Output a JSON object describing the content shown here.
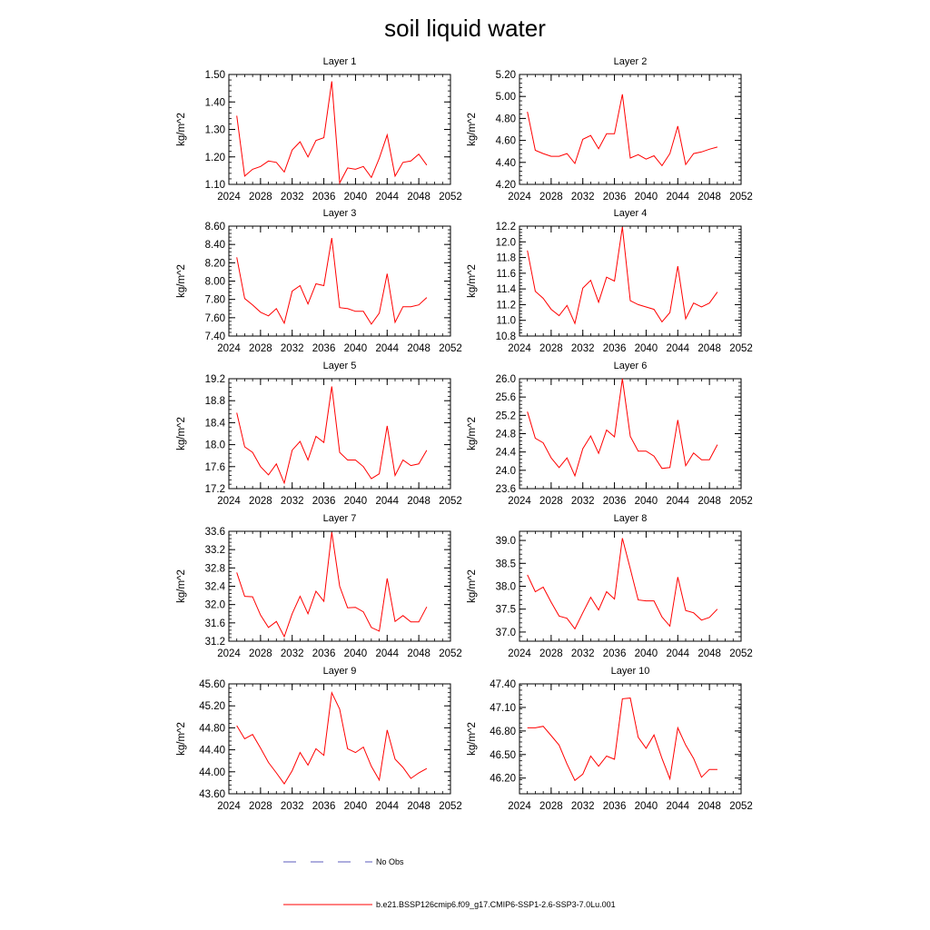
{
  "title": "soil liquid water",
  "colors": {
    "series": "#ff0000",
    "obs": "#5b5bbd",
    "axis": "#000000"
  },
  "legend": {
    "obs_label": "No Obs",
    "series_label": "b.e21.BSSP126cmip6.f09_g17.CMIP6-SSP1-2.6-SSP3-7.0Lu.001"
  },
  "chart_data": [
    {
      "type": "line",
      "title": "Layer 1",
      "ylabel": "kg/m^2",
      "xlim": [
        2024,
        2052
      ],
      "ylim": [
        1.1,
        1.5
      ],
      "xticks": [
        2024,
        2028,
        2032,
        2036,
        2040,
        2044,
        2048,
        2052
      ],
      "xtick_labels": [
        "2024",
        "2028",
        "2032",
        "2036",
        "2040",
        "2044",
        "2048",
        "2052"
      ],
      "yticks": [
        1.1,
        1.2,
        1.3,
        1.4,
        1.5
      ],
      "ytick_labels": [
        "1.10",
        "1.20",
        "1.30",
        "1.40",
        "1.50"
      ],
      "series": [
        {
          "x": [
            2025,
            2026,
            2027,
            2028,
            2029,
            2030,
            2031,
            2032,
            2033,
            2034,
            2035,
            2036,
            2037,
            2038,
            2039,
            2040,
            2041,
            2042,
            2043,
            2044,
            2045,
            2046,
            2047,
            2048,
            2049
          ],
          "y": [
            1.35,
            1.13,
            1.155,
            1.165,
            1.185,
            1.18,
            1.145,
            1.225,
            1.255,
            1.2,
            1.26,
            1.27,
            1.475,
            1.105,
            1.16,
            1.155,
            1.165,
            1.125,
            1.195,
            1.28,
            1.13,
            1.18,
            1.185,
            1.21,
            1.17
          ]
        }
      ]
    },
    {
      "type": "line",
      "title": "Layer 2",
      "ylabel": "kg/m^2",
      "xlim": [
        2024,
        2052
      ],
      "ylim": [
        4.2,
        5.2
      ],
      "xticks": [
        2024,
        2028,
        2032,
        2036,
        2040,
        2044,
        2048,
        2052
      ],
      "xtick_labels": [
        "2024",
        "2028",
        "2032",
        "2036",
        "2040",
        "2044",
        "2048",
        "2052"
      ],
      "yticks": [
        4.2,
        4.4,
        4.6,
        4.8,
        5.0,
        5.2
      ],
      "ytick_labels": [
        "4.20",
        "4.40",
        "4.60",
        "4.80",
        "5.00",
        "5.20"
      ],
      "series": [
        {
          "x": [
            2025,
            2026,
            2027,
            2028,
            2029,
            2030,
            2031,
            2032,
            2033,
            2034,
            2035,
            2036,
            2037,
            2038,
            2039,
            2040,
            2041,
            2042,
            2043,
            2044,
            2045,
            2046,
            2047,
            2048,
            2049
          ],
          "y": [
            4.86,
            4.51,
            4.48,
            4.455,
            4.455,
            4.48,
            4.39,
            4.61,
            4.645,
            4.525,
            4.66,
            4.66,
            5.02,
            4.44,
            4.47,
            4.43,
            4.46,
            4.37,
            4.48,
            4.73,
            4.38,
            4.48,
            4.495,
            4.52,
            4.54
          ]
        }
      ]
    },
    {
      "type": "line",
      "title": "Layer 3",
      "ylabel": "kg/m^2",
      "xlim": [
        2024,
        2052
      ],
      "ylim": [
        7.4,
        8.6
      ],
      "xticks": [
        2024,
        2028,
        2032,
        2036,
        2040,
        2044,
        2048,
        2052
      ],
      "xtick_labels": [
        "2024",
        "2028",
        "2032",
        "2036",
        "2040",
        "2044",
        "2048",
        "2052"
      ],
      "yticks": [
        7.4,
        7.6,
        7.8,
        8.0,
        8.2,
        8.4,
        8.6
      ],
      "ytick_labels": [
        "7.40",
        "7.60",
        "7.80",
        "8.00",
        "8.20",
        "8.40",
        "8.60"
      ],
      "series": [
        {
          "x": [
            2025,
            2026,
            2027,
            2028,
            2029,
            2030,
            2031,
            2032,
            2033,
            2034,
            2035,
            2036,
            2037,
            2038,
            2039,
            2040,
            2041,
            2042,
            2043,
            2044,
            2045,
            2046,
            2047,
            2048,
            2049
          ],
          "y": [
            8.26,
            7.81,
            7.74,
            7.66,
            7.62,
            7.7,
            7.54,
            7.89,
            7.95,
            7.75,
            7.97,
            7.95,
            8.47,
            7.71,
            7.7,
            7.67,
            7.67,
            7.53,
            7.65,
            8.08,
            7.55,
            7.72,
            7.72,
            7.74,
            7.82
          ]
        }
      ]
    },
    {
      "type": "line",
      "title": "Layer 4",
      "ylabel": "kg/m^2",
      "xlim": [
        2024,
        2052
      ],
      "ylim": [
        10.8,
        12.2
      ],
      "xticks": [
        2024,
        2028,
        2032,
        2036,
        2040,
        2044,
        2048,
        2052
      ],
      "xtick_labels": [
        "2024",
        "2028",
        "2032",
        "2036",
        "2040",
        "2044",
        "2048",
        "2052"
      ],
      "yticks": [
        10.8,
        11.0,
        11.2,
        11.4,
        11.6,
        11.8,
        12.0,
        12.2
      ],
      "ytick_labels": [
        "10.8",
        "11.0",
        "11.2",
        "11.4",
        "11.6",
        "11.8",
        "12.0",
        "12.2"
      ],
      "series": [
        {
          "x": [
            2025,
            2026,
            2027,
            2028,
            2029,
            2030,
            2031,
            2032,
            2033,
            2034,
            2035,
            2036,
            2037,
            2038,
            2039,
            2040,
            2041,
            2042,
            2043,
            2044,
            2045,
            2046,
            2047,
            2048,
            2049
          ],
          "y": [
            11.89,
            11.37,
            11.28,
            11.14,
            11.06,
            11.19,
            10.96,
            11.41,
            11.51,
            11.23,
            11.55,
            11.5,
            12.19,
            11.25,
            11.2,
            11.17,
            11.14,
            10.98,
            11.1,
            11.69,
            11.02,
            11.22,
            11.17,
            11.22,
            11.36
          ]
        }
      ]
    },
    {
      "type": "line",
      "title": "Layer 5",
      "ylabel": "kg/m^2",
      "xlim": [
        2024,
        2052
      ],
      "ylim": [
        17.2,
        19.2
      ],
      "xticks": [
        2024,
        2028,
        2032,
        2036,
        2040,
        2044,
        2048,
        2052
      ],
      "xtick_labels": [
        "2024",
        "2028",
        "2032",
        "2036",
        "2040",
        "2044",
        "2048",
        "2052"
      ],
      "yticks": [
        17.2,
        17.6,
        18.0,
        18.4,
        18.8,
        19.2
      ],
      "ytick_labels": [
        "17.2",
        "17.6",
        "18.0",
        "18.4",
        "18.8",
        "19.2"
      ],
      "series": [
        {
          "x": [
            2025,
            2026,
            2027,
            2028,
            2029,
            2030,
            2031,
            2032,
            2033,
            2034,
            2035,
            2036,
            2037,
            2038,
            2039,
            2040,
            2041,
            2042,
            2043,
            2044,
            2045,
            2046,
            2047,
            2048,
            2049
          ],
          "y": [
            18.58,
            17.96,
            17.86,
            17.6,
            17.45,
            17.65,
            17.3,
            17.9,
            18.06,
            17.72,
            18.15,
            18.04,
            19.06,
            17.86,
            17.72,
            17.72,
            17.6,
            17.38,
            17.47,
            18.34,
            17.44,
            17.72,
            17.62,
            17.65,
            17.9
          ]
        }
      ]
    },
    {
      "type": "line",
      "title": "Layer 6",
      "ylabel": "kg/m^2",
      "xlim": [
        2024,
        2052
      ],
      "ylim": [
        23.6,
        26.0
      ],
      "xticks": [
        2024,
        2028,
        2032,
        2036,
        2040,
        2044,
        2048,
        2052
      ],
      "xtick_labels": [
        "2024",
        "2028",
        "2032",
        "2036",
        "2040",
        "2044",
        "2048",
        "2052"
      ],
      "yticks": [
        23.6,
        24.0,
        24.4,
        24.8,
        25.2,
        25.6,
        26.0
      ],
      "ytick_labels": [
        "23.6",
        "24.0",
        "24.4",
        "24.8",
        "25.2",
        "25.6",
        "26.0"
      ],
      "series": [
        {
          "x": [
            2025,
            2026,
            2027,
            2028,
            2029,
            2030,
            2031,
            2032,
            2033,
            2034,
            2035,
            2036,
            2037,
            2038,
            2039,
            2040,
            2041,
            2042,
            2043,
            2044,
            2045,
            2046,
            2047,
            2048,
            2049
          ],
          "y": [
            25.28,
            24.7,
            24.6,
            24.27,
            24.06,
            24.27,
            23.88,
            24.47,
            24.75,
            24.37,
            24.88,
            24.73,
            26.0,
            24.74,
            24.42,
            24.42,
            24.31,
            24.04,
            24.06,
            25.1,
            24.1,
            24.38,
            24.23,
            24.23,
            24.56
          ]
        }
      ]
    },
    {
      "type": "line",
      "title": "Layer 7",
      "ylabel": "kg/m^2",
      "xlim": [
        2024,
        2052
      ],
      "ylim": [
        31.2,
        33.6
      ],
      "xticks": [
        2024,
        2028,
        2032,
        2036,
        2040,
        2044,
        2048,
        2052
      ],
      "xtick_labels": [
        "2024",
        "2028",
        "2032",
        "2036",
        "2040",
        "2044",
        "2048",
        "2052"
      ],
      "yticks": [
        31.2,
        31.6,
        32.0,
        32.4,
        32.8,
        33.2,
        33.6
      ],
      "ytick_labels": [
        "31.2",
        "31.6",
        "32.0",
        "32.4",
        "32.8",
        "33.2",
        "33.6"
      ],
      "series": [
        {
          "x": [
            2025,
            2026,
            2027,
            2028,
            2029,
            2030,
            2031,
            2032,
            2033,
            2034,
            2035,
            2036,
            2037,
            2038,
            2039,
            2040,
            2041,
            2042,
            2043,
            2044,
            2045,
            2046,
            2047,
            2048,
            2049
          ],
          "y": [
            32.7,
            32.18,
            32.17,
            31.77,
            31.5,
            31.63,
            31.3,
            31.8,
            32.18,
            31.8,
            32.29,
            32.07,
            33.58,
            32.4,
            31.93,
            31.94,
            31.84,
            31.5,
            31.42,
            32.57,
            31.63,
            31.76,
            31.62,
            31.62,
            31.95
          ]
        }
      ]
    },
    {
      "type": "line",
      "title": "Layer 8",
      "ylabel": "kg/m^2",
      "xlim": [
        2024,
        2052
      ],
      "ylim": [
        36.8,
        39.2
      ],
      "xticks": [
        2024,
        2028,
        2032,
        2036,
        2040,
        2044,
        2048,
        2052
      ],
      "xtick_labels": [
        "2024",
        "2028",
        "2032",
        "2036",
        "2040",
        "2044",
        "2048",
        "2052"
      ],
      "yticks": [
        37.0,
        37.5,
        38.0,
        38.5,
        39.0
      ],
      "ytick_labels": [
        "37.0",
        "37.5",
        "38.0",
        "38.5",
        "39.0"
      ],
      "series": [
        {
          "x": [
            2025,
            2026,
            2027,
            2028,
            2029,
            2030,
            2031,
            2032,
            2033,
            2034,
            2035,
            2036,
            2037,
            2038,
            2039,
            2040,
            2041,
            2042,
            2043,
            2044,
            2045,
            2046,
            2047,
            2048,
            2049
          ],
          "y": [
            38.25,
            37.88,
            37.98,
            37.65,
            37.35,
            37.3,
            37.07,
            37.42,
            37.76,
            37.48,
            37.88,
            37.72,
            39.05,
            38.38,
            37.7,
            37.68,
            37.68,
            37.33,
            37.13,
            38.2,
            37.47,
            37.42,
            37.26,
            37.32,
            37.5
          ]
        }
      ]
    },
    {
      "type": "line",
      "title": "Layer 9",
      "ylabel": "kg/m^2",
      "xlim": [
        2024,
        2052
      ],
      "ylim": [
        43.6,
        45.6
      ],
      "xticks": [
        2024,
        2028,
        2032,
        2036,
        2040,
        2044,
        2048,
        2052
      ],
      "xtick_labels": [
        "2024",
        "2028",
        "2032",
        "2036",
        "2040",
        "2044",
        "2048",
        "2052"
      ],
      "yticks": [
        43.6,
        44.0,
        44.4,
        44.8,
        45.2,
        45.6
      ],
      "ytick_labels": [
        "43.60",
        "44.00",
        "44.40",
        "44.80",
        "45.20",
        "45.60"
      ],
      "series": [
        {
          "x": [
            2025,
            2026,
            2027,
            2028,
            2029,
            2030,
            2031,
            2032,
            2033,
            2034,
            2035,
            2036,
            2037,
            2038,
            2039,
            2040,
            2041,
            2042,
            2043,
            2044,
            2045,
            2046,
            2047,
            2048,
            2049
          ],
          "y": [
            44.84,
            44.6,
            44.68,
            44.43,
            44.17,
            43.98,
            43.78,
            44.02,
            44.35,
            44.12,
            44.42,
            44.3,
            45.44,
            45.14,
            44.42,
            44.35,
            44.45,
            44.1,
            43.85,
            44.76,
            44.23,
            44.08,
            43.88,
            43.98,
            44.06
          ]
        }
      ]
    },
    {
      "type": "line",
      "title": "Layer 10",
      "ylabel": "kg/m^2",
      "xlim": [
        2024,
        2052
      ],
      "ylim": [
        46.0,
        47.4
      ],
      "xticks": [
        2024,
        2028,
        2032,
        2036,
        2040,
        2044,
        2048,
        2052
      ],
      "xtick_labels": [
        "2024",
        "2028",
        "2032",
        "2036",
        "2040",
        "2044",
        "2048",
        "2052"
      ],
      "yticks": [
        46.2,
        46.5,
        46.8,
        47.1,
        47.4
      ],
      "ytick_labels": [
        "46.20",
        "46.50",
        "46.80",
        "47.10",
        "47.40"
      ],
      "series": [
        {
          "x": [
            2025,
            2026,
            2027,
            2028,
            2029,
            2030,
            2031,
            2032,
            2033,
            2034,
            2035,
            2036,
            2037,
            2038,
            2039,
            2040,
            2041,
            2042,
            2043,
            2044,
            2045,
            2046,
            2047,
            2048,
            2049
          ],
          "y": [
            46.84,
            46.84,
            46.86,
            46.74,
            46.62,
            46.38,
            46.17,
            46.25,
            46.48,
            46.35,
            46.48,
            46.44,
            47.21,
            47.22,
            46.72,
            46.58,
            46.75,
            46.45,
            46.19,
            46.84,
            46.62,
            46.45,
            46.21,
            46.31,
            46.31
          ]
        }
      ]
    }
  ]
}
